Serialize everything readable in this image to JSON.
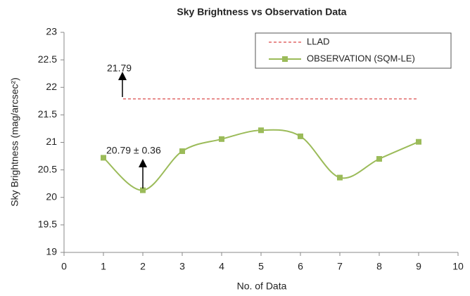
{
  "chart_data": {
    "type": "line",
    "title": "Sky Brightness vs Observation Data",
    "x_label": "No. of Data",
    "y_label": "Sky Brightness (mag/arcsec²)",
    "xlim": [
      0,
      10
    ],
    "xticks": [
      0,
      1,
      2,
      3,
      4,
      5,
      6,
      7,
      8,
      9,
      10
    ],
    "ylim": [
      19,
      23
    ],
    "yticks": [
      19,
      19.5,
      20,
      20.5,
      21,
      21.5,
      22,
      22.5,
      23
    ],
    "grid": false,
    "legend": "upper right",
    "series": [
      {
        "name": "LLAD",
        "color": "#e06666",
        "dashed": true,
        "x": [
          1.5,
          9
        ],
        "values": [
          21.79,
          21.79
        ]
      },
      {
        "name": "OBSERVATION (SQM-LE)",
        "color": "#9bbb59",
        "smooth": true,
        "marker": "square",
        "x": [
          1,
          2,
          3,
          4,
          5,
          6,
          7,
          8,
          9
        ],
        "values": [
          20.72,
          20.13,
          20.84,
          21.06,
          21.22,
          21.11,
          20.36,
          20.7,
          21.01
        ]
      }
    ],
    "annotations": [
      "21.79",
      "20.79 ± 0.36"
    ]
  }
}
